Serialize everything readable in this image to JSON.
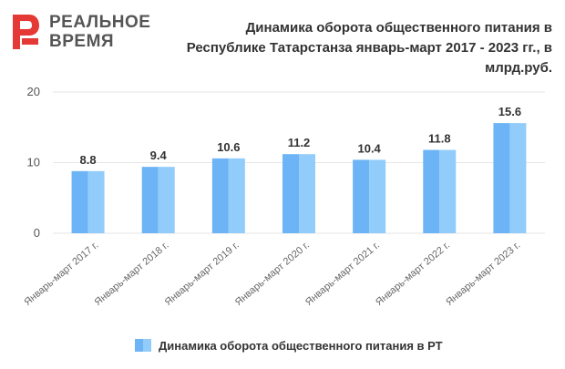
{
  "brand": {
    "line1": "РЕАЛЬНОЕ",
    "line2": "ВРЕМЯ",
    "logo_color": "#e53935"
  },
  "title": "Динамика оборота общественного питания в Республике Татарстанза январь-март 2017 - 2023 гг., в млрд.руб.",
  "colors": {
    "bar_left": "#6cb4f5",
    "bar_right": "#92ccfa",
    "grid": "#e6e6e6",
    "label": "#333333"
  },
  "chart_data": {
    "type": "bar",
    "categories": [
      "Январь-март 2017 г.",
      "Январь-март 2018 г.",
      "Январь-март 2019 г.",
      "Январь-март 2020 г.",
      "Январь-март 2021 г.",
      "Январь-март 2022 г.",
      "Январь-март 2023 г."
    ],
    "series": [
      {
        "name": "Динамика оборота общественного питания в РТ",
        "values": [
          8.8,
          9.4,
          10.6,
          11.2,
          10.4,
          11.8,
          15.6
        ]
      }
    ],
    "data_labels": [
      "8.8",
      "9.4",
      "10.6",
      "11.2",
      "10.4",
      "11.8",
      "15.6"
    ],
    "yticks": [
      0,
      10,
      20
    ],
    "ylim": [
      0,
      20
    ],
    "grid": true,
    "legend": "bottom"
  }
}
